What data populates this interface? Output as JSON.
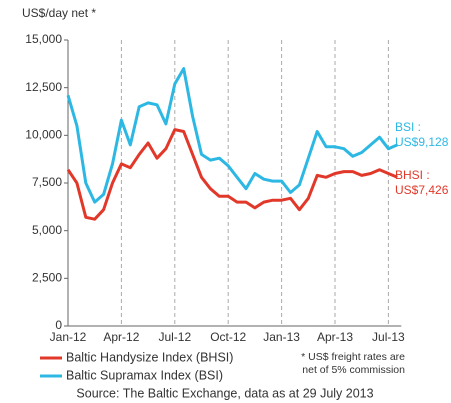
{
  "chart_data": {
    "type": "line",
    "y_axis_label": "US$/day net *",
    "categories": [
      "Jan-12",
      null,
      null,
      null,
      null,
      null,
      "Apr-12",
      null,
      null,
      null,
      null,
      null,
      "Jul-12",
      null,
      null,
      null,
      null,
      null,
      "Oct-12",
      null,
      null,
      null,
      null,
      null,
      "Jan-13",
      null,
      null,
      null,
      null,
      null,
      "Apr-13",
      null,
      null,
      null,
      null,
      null,
      "Jul-13",
      null
    ],
    "series": [
      {
        "name": "Baltic Handysize Index (BHSI)",
        "color": "#e2382a",
        "values": [
          8200,
          7500,
          5700,
          5600,
          6100,
          7500,
          8500,
          8300,
          9000,
          9600,
          8800,
          9300,
          10300,
          10200,
          9000,
          7800,
          7200,
          6800,
          6800,
          6500,
          6500,
          6200,
          6500,
          6600,
          6600,
          6700,
          6100,
          6700,
          7900,
          7800,
          8000,
          8100,
          8100,
          7900,
          8000,
          8200,
          8000,
          7800
        ]
      },
      {
        "name": "Baltic Supramax Index (BSI)",
        "color": "#2db8e4",
        "values": [
          12100,
          10500,
          7500,
          6500,
          6900,
          8500,
          10800,
          9500,
          11500,
          11700,
          11600,
          10600,
          12700,
          13500,
          11000,
          9000,
          8700,
          8800,
          8400,
          7800,
          7200,
          8000,
          7700,
          7600,
          7600,
          7000,
          7400,
          8800,
          10200,
          9400,
          9400,
          9300,
          8900,
          9100,
          9500,
          9900,
          9300,
          9500
        ]
      }
    ],
    "annotations": [
      {
        "lines": [
          "BSI :",
          "US$9,128"
        ],
        "color": "#2db8e4"
      },
      {
        "lines": [
          "BHSI :",
          "US$7,426"
        ],
        "color": "#e2382a"
      }
    ],
    "note": [
      "* US$ freight rates are",
      "net of 5% commission"
    ],
    "source": "Source: The Baltic Exchange, data as at 29 July 2013",
    "ylim": [
      0,
      15000
    ],
    "yticks": [
      0,
      {
        "value": 2500,
        "label": "2,500"
      },
      {
        "value": 5000,
        "label": "5,000"
      },
      {
        "value": 7500,
        "label": "7,500"
      },
      {
        "value": 10000,
        "label": "10,000"
      },
      {
        "value": 12500,
        "label": "12,500"
      },
      {
        "value": 15000,
        "label": "15,000"
      }
    ]
  }
}
